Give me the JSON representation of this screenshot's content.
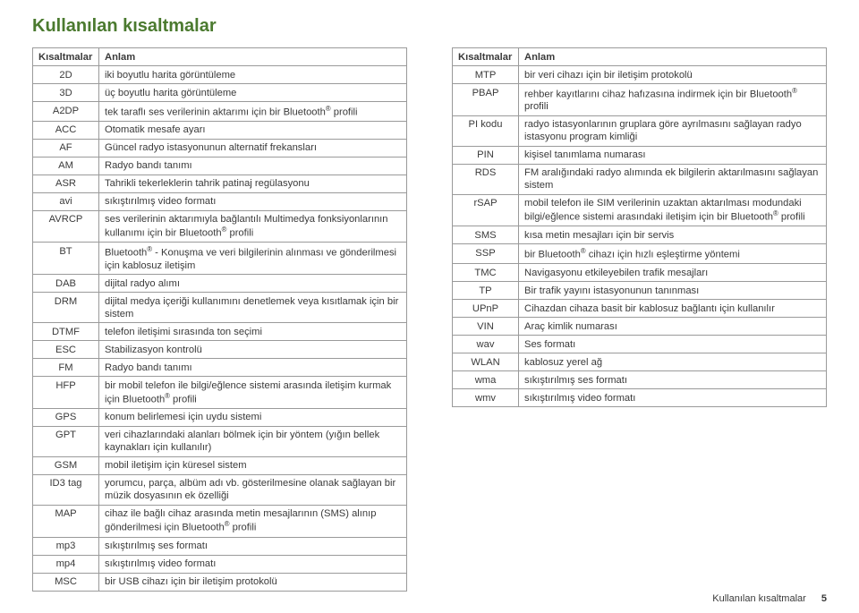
{
  "section_title": "Kullanılan kısaltmalar",
  "table_header": {
    "abbr": "Kısaltmalar",
    "meaning": "Anlam"
  },
  "left_rows": [
    {
      "abbr": "2D",
      "meaning": "iki boyutlu harita görüntüleme"
    },
    {
      "abbr": "3D",
      "meaning": "üç boyutlu harita görüntüleme"
    },
    {
      "abbr": "A2DP",
      "meaning": "tek taraflı ses verilerinin aktarımı için bir Bluetooth® profili"
    },
    {
      "abbr": "ACC",
      "meaning": "Otomatik mesafe ayarı"
    },
    {
      "abbr": "AF",
      "meaning": "Güncel radyo istasyonunun alternatif frekansları"
    },
    {
      "abbr": "AM",
      "meaning": "Radyo bandı tanımı"
    },
    {
      "abbr": "ASR",
      "meaning": "Tahrikli tekerleklerin tahrik patinaj regülasyonu"
    },
    {
      "abbr": "avi",
      "meaning": "sıkıştırılmış video formatı"
    },
    {
      "abbr": "AVRCP",
      "meaning": "ses verilerinin aktarımıyla bağlantılı Multimedya fonksiyonlarının kullanımı için bir Bluetooth® profili"
    },
    {
      "abbr": "BT",
      "meaning": "Bluetooth® - Konuşma ve veri bilgilerinin alınması ve gönderilmesi için kablosuz iletişim"
    },
    {
      "abbr": "DAB",
      "meaning": "dijital radyo alımı"
    },
    {
      "abbr": "DRM",
      "meaning": "dijital medya içeriği kullanımını denetlemek veya kısıtlamak için bir sistem"
    },
    {
      "abbr": "DTMF",
      "meaning": "telefon iletişimi sırasında ton seçimi"
    },
    {
      "abbr": "ESC",
      "meaning": "Stabilizasyon kontrolü"
    },
    {
      "abbr": "FM",
      "meaning": "Radyo bandı tanımı"
    },
    {
      "abbr": "HFP",
      "meaning": "bir mobil telefon ile bilgi/eğlence sistemi arasında iletişim kurmak için Bluetooth® profili"
    },
    {
      "abbr": "GPS",
      "meaning": "konum belirlemesi için uydu sistemi"
    },
    {
      "abbr": "GPT",
      "meaning": "veri cihazlarındaki alanları bölmek için bir yöntem (yığın bellek kaynakları için kullanılır)"
    },
    {
      "abbr": "GSM",
      "meaning": "mobil iletişim için küresel sistem"
    },
    {
      "abbr": "ID3 tag",
      "meaning": "yorumcu, parça, albüm adı vb. gösterilmesine olanak sağlayan bir müzik dosyasının ek özelliği"
    },
    {
      "abbr": "MAP",
      "meaning": "cihaz ile bağlı cihaz arasında metin mesajlarının (SMS) alınıp gönderilmesi için Bluetooth® profili"
    },
    {
      "abbr": "mp3",
      "meaning": "sıkıştırılmış ses formatı"
    },
    {
      "abbr": "mp4",
      "meaning": "sıkıştırılmış video formatı"
    },
    {
      "abbr": "MSC",
      "meaning": "bir USB cihazı için bir iletişim protokolü"
    }
  ],
  "right_rows": [
    {
      "abbr": "MTP",
      "meaning": "bir veri cihazı için bir iletişim protokolü"
    },
    {
      "abbr": "PBAP",
      "meaning": "rehber kayıtlarını cihaz hafızasına indirmek için bir Bluetooth® profili"
    },
    {
      "abbr": "PI kodu",
      "meaning": "radyo istasyonlarının gruplara göre ayrılmasını sağlayan radyo istasyonu program kimliği"
    },
    {
      "abbr": "PIN",
      "meaning": "kişisel tanımlama numarası"
    },
    {
      "abbr": "RDS",
      "meaning": "FM aralığındaki radyo alımında ek bilgilerin aktarılmasını sağlayan sistem"
    },
    {
      "abbr": "rSAP",
      "meaning": "mobil telefon ile SIM verilerinin uzaktan aktarılması modundaki bilgi/eğlence sistemi arasındaki iletişim için bir Bluetooth® profili"
    },
    {
      "abbr": "SMS",
      "meaning": "kısa metin mesajları için bir servis"
    },
    {
      "abbr": "SSP",
      "meaning": "bir Bluetooth® cihazı için hızlı eşleştirme yöntemi"
    },
    {
      "abbr": "TMC",
      "meaning": "Navigasyonu etkileyebilen trafik mesajları"
    },
    {
      "abbr": "TP",
      "meaning": "Bir trafik yayını istasyonunun tanınması"
    },
    {
      "abbr": "UPnP",
      "meaning": "Cihazdan cihaza basit bir kablosuz bağlantı için kullanılır"
    },
    {
      "abbr": "VIN",
      "meaning": "Araç kimlik numarası"
    },
    {
      "abbr": "wav",
      "meaning": "Ses formatı"
    },
    {
      "abbr": "WLAN",
      "meaning": "kablosuz yerel ağ"
    },
    {
      "abbr": "wma",
      "meaning": "sıkıştırılmış ses formatı"
    },
    {
      "abbr": "wmv",
      "meaning": "sıkıştırılmış video formatı"
    }
  ],
  "footer": {
    "label": "Kullanılan kısaltmalar",
    "page": "5"
  },
  "colors": {
    "title": "#4b7a2f",
    "text": "#3a3a3a",
    "border": "#9a9a9a",
    "background": "#ffffff"
  }
}
